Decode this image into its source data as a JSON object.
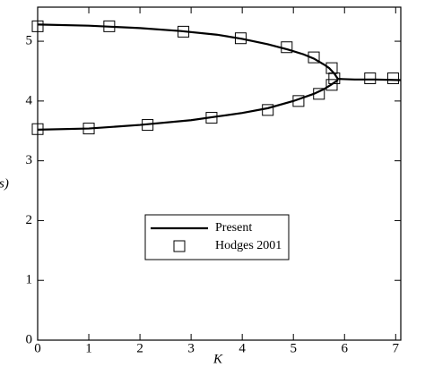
{
  "chart_data": {
    "type": "line",
    "x_label": "K",
    "y_label": "s)",
    "xlim": [
      0,
      7.1
    ],
    "ylim": [
      0,
      5.57
    ],
    "xticks": [
      0,
      1,
      2,
      3,
      4,
      5,
      6,
      7
    ],
    "yticks": [
      0,
      1,
      2,
      3,
      4,
      5
    ],
    "legend": "center",
    "series": [
      {
        "name": "Present",
        "style": "line",
        "color": "#000000",
        "x": [
          0,
          1,
          2,
          2.8,
          3.5,
          4,
          4.5,
          4.9,
          5.2,
          5.4,
          5.6,
          5.7,
          5.8,
          5.87,
          6.2,
          6.6,
          7.1,
          null,
          0,
          1,
          2,
          3,
          3.5,
          4,
          4.5,
          5,
          5.4,
          5.6,
          5.75,
          5.87
        ],
        "values": [
          5.28,
          5.26,
          5.22,
          5.17,
          5.11,
          5.04,
          4.95,
          4.86,
          4.78,
          4.71,
          4.61,
          4.55,
          4.46,
          4.37,
          4.36,
          4.36,
          4.35,
          null,
          3.52,
          3.54,
          3.6,
          3.68,
          3.74,
          3.8,
          3.88,
          4.0,
          4.12,
          4.2,
          4.28,
          4.35
        ]
      },
      {
        "name": "Hodges 2001",
        "style": "markers",
        "color": "#000000",
        "x": [
          0,
          1.4,
          2.85,
          3.97,
          4.87,
          5.4,
          5.75,
          5.8,
          6.5,
          6.95,
          0,
          1.0,
          2.15,
          3.4,
          4.5,
          5.1,
          5.5,
          5.75
        ],
        "values": [
          5.25,
          5.25,
          5.16,
          5.05,
          4.9,
          4.73,
          4.55,
          4.38,
          4.38,
          4.38,
          3.53,
          3.54,
          3.6,
          3.72,
          3.85,
          4.0,
          4.12,
          4.27
        ]
      }
    ]
  }
}
